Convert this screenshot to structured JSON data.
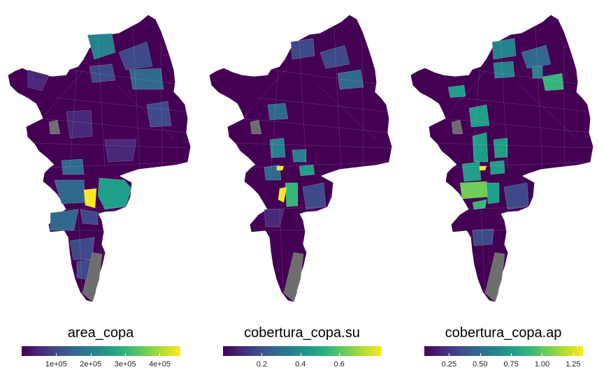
{
  "colors": {
    "na": "#6e6e6e",
    "viridis": [
      "#440154",
      "#482878",
      "#3e4a89",
      "#31688e",
      "#26828e",
      "#1f9e89",
      "#35b779",
      "#6ece58",
      "#b5de2b",
      "#fde725"
    ]
  },
  "panels": [
    {
      "id": "area_copa",
      "title": "area_copa",
      "range": [
        0,
        460000
      ],
      "ticks": [
        {
          "value": 100000,
          "label": "1e+05"
        },
        {
          "value": 200000,
          "label": "2e+05"
        },
        {
          "value": 300000,
          "label": "3e+05"
        },
        {
          "value": 400000,
          "label": "4e+05"
        }
      ]
    },
    {
      "id": "cobertura_copa_su",
      "title": "cobertura_copa.su",
      "range": [
        0.0,
        0.82
      ],
      "ticks": [
        {
          "value": 0.2,
          "label": "0.2"
        },
        {
          "value": 0.4,
          "label": "0.4"
        },
        {
          "value": 0.6,
          "label": "0.6"
        }
      ]
    },
    {
      "id": "cobertura_copa_ap",
      "title": "cobertura_copa.ap",
      "range": [
        0.05,
        1.33
      ],
      "ticks": [
        {
          "value": 0.25,
          "label": "0.25"
        },
        {
          "value": 0.5,
          "label": "0.50"
        },
        {
          "value": 0.75,
          "label": "0.75"
        },
        {
          "value": 1.0,
          "label": "1.00"
        },
        {
          "value": 1.25,
          "label": "1.25"
        }
      ]
    }
  ]
}
